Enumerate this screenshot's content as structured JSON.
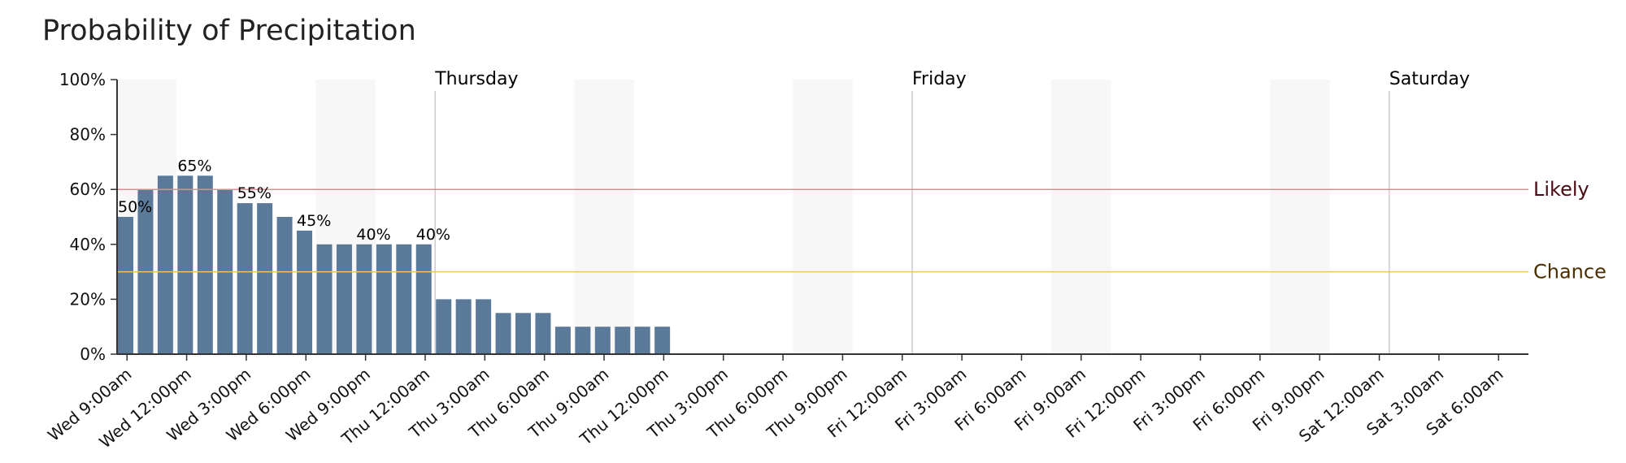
{
  "chart_data": {
    "type": "bar",
    "title": "Probability of Precipitation",
    "xlabel": "",
    "ylabel": "",
    "ylim": [
      0,
      100
    ],
    "y_ticks": [
      "0%",
      "20%",
      "40%",
      "60%",
      "80%",
      "100%"
    ],
    "y_tick_values": [
      0,
      20,
      40,
      60,
      80,
      100
    ],
    "x_tick_labels": [
      "Wed 9:00am",
      "Wed 12:00pm",
      "Wed 3:00pm",
      "Wed 6:00pm",
      "Wed 9:00pm",
      "Thu 12:00am",
      "Thu 3:00am",
      "Thu 6:00am",
      "Thu 9:00am",
      "Thu 12:00pm",
      "Thu 3:00pm",
      "Thu 6:00pm",
      "Thu 9:00pm",
      "Fri 12:00am",
      "Fri 3:00am",
      "Fri 6:00am",
      "Fri 9:00am",
      "Fri 12:00pm",
      "Fri 3:00pm",
      "Fri 6:00pm",
      "Fri 9:00pm",
      "Sat 12:00am",
      "Sat 3:00am",
      "Sat 6:00am"
    ],
    "time_range_hours": [
      8,
      79
    ],
    "first_tick_hour": 8.5,
    "tick_step_hours": 3,
    "day_markers": [
      {
        "label": "Thursday",
        "hour": 24
      },
      {
        "label": "Friday",
        "hour": 48
      },
      {
        "label": "Saturday",
        "hour": 72
      }
    ],
    "night_bands": [
      [
        8,
        11
      ],
      [
        18,
        21
      ],
      [
        31,
        34
      ],
      [
        42,
        45
      ],
      [
        55,
        58
      ],
      [
        66,
        69
      ],
      [
        79,
        80
      ]
    ],
    "series": [
      {
        "start_hour": 8,
        "values": [
          50,
          60,
          65,
          65,
          65,
          60,
          55,
          55,
          50,
          45,
          40,
          40,
          40,
          40,
          40,
          40,
          20,
          20,
          20,
          15,
          15,
          15,
          10,
          10,
          10,
          10,
          10,
          10
        ],
        "color": "#5b7a9a"
      }
    ],
    "data_labels": [
      {
        "index": 0,
        "text": "50%"
      },
      {
        "index": 3,
        "text": "65%"
      },
      {
        "index": 6,
        "text": "55%"
      },
      {
        "index": 9,
        "text": "45%"
      },
      {
        "index": 12,
        "text": "40%"
      },
      {
        "index": 15,
        "text": "40%"
      }
    ],
    "thresholds": [
      {
        "label": "Likely",
        "value": 60,
        "color": "#e58a94",
        "text_color": "#4a0a12"
      },
      {
        "label": "Chance",
        "value": 30,
        "color": "#f2c06a",
        "text_color": "#4a3000"
      }
    ],
    "band_color": "#f7f7f7",
    "grid": false,
    "legend": "none"
  }
}
